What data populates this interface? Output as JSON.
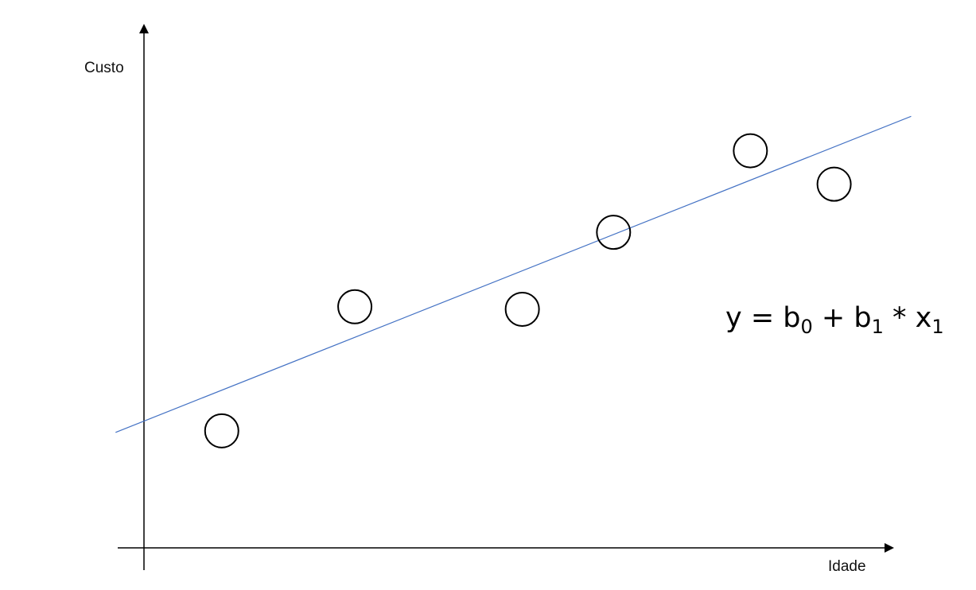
{
  "chart_data": {
    "type": "scatter",
    "title": "",
    "xlabel": "Idade",
    "ylabel": "Custo",
    "xlim": [
      0,
      100
    ],
    "ylim": [
      0,
      100
    ],
    "grid": false,
    "axis_ticks": false,
    "points": [
      {
        "x": 10.4,
        "y": 23.1
      },
      {
        "x": 28.2,
        "y": 47.6
      },
      {
        "x": 50.6,
        "y": 47.1
      },
      {
        "x": 62.8,
        "y": 62.3
      },
      {
        "x": 81.1,
        "y": 78.4
      },
      {
        "x": 92.3,
        "y": 71.8
      }
    ],
    "trendline": {
      "x": [
        -3.8,
        102.6
      ],
      "y": [
        22.8,
        85.2
      ],
      "color": "#4472C4"
    },
    "annotation": {
      "parts": [
        {
          "text": "y = b",
          "sub": false
        },
        {
          "text": "0",
          "sub": true
        },
        {
          "text": " + b",
          "sub": false
        },
        {
          "text": "1",
          "sub": true
        },
        {
          "text": " * x",
          "sub": false
        },
        {
          "text": "1",
          "sub": true
        }
      ]
    },
    "colors": {
      "axis": "#000000",
      "point_stroke": "#000000",
      "point_fill": "#ffffff",
      "line": "#4472C4"
    }
  }
}
